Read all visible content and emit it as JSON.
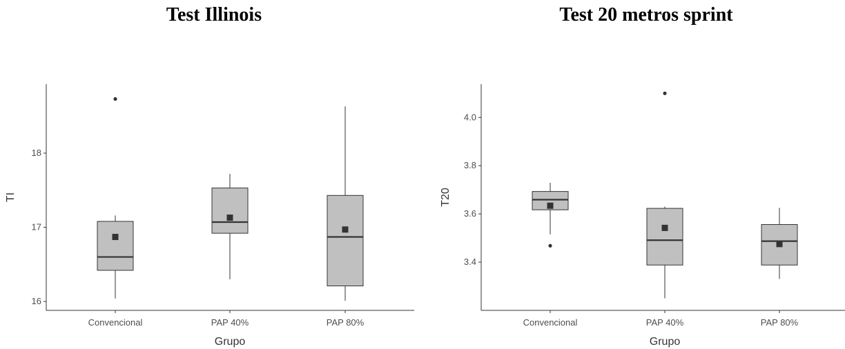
{
  "chart_data": [
    {
      "type": "box",
      "title": "Test Illinois",
      "xlabel": "Grupo",
      "ylabel": "TI",
      "categories": [
        "Convencional",
        "PAP 40%",
        "PAP 80%"
      ],
      "yticks": [
        16,
        17,
        18
      ],
      "ylim": [
        15.88,
        18.93
      ],
      "boxes": [
        {
          "category": "Convencional",
          "whisker_low": 16.04,
          "q1": 16.42,
          "median": 16.6,
          "q3": 17.08,
          "whisker_high": 17.16,
          "mean": 16.87,
          "outliers": [
            18.73
          ]
        },
        {
          "category": "PAP 40%",
          "whisker_low": 16.3,
          "q1": 16.92,
          "median": 17.07,
          "q3": 17.53,
          "whisker_high": 17.72,
          "mean": 17.13,
          "outliers": []
        },
        {
          "category": "PAP 80%",
          "whisker_low": 16.01,
          "q1": 16.21,
          "median": 16.87,
          "q3": 17.43,
          "whisker_high": 18.63,
          "mean": 16.97,
          "outliers": []
        }
      ]
    },
    {
      "type": "box",
      "title": "Test 20 metros sprint",
      "xlabel": "Grupo",
      "ylabel": "T20",
      "categories": [
        "Convencional",
        "PAP 40%",
        "PAP 80%"
      ],
      "yticks": [
        3.4,
        3.6,
        3.8,
        4.0
      ],
      "ytick_labels": [
        "3.4",
        "3.6",
        "3.8",
        "4.0"
      ],
      "ylim": [
        3.2,
        4.138
      ],
      "boxes": [
        {
          "category": "Convencional",
          "whisker_low": 3.515,
          "q1": 3.617,
          "median": 3.659,
          "q3": 3.693,
          "whisker_high": 3.729,
          "mean": 3.634,
          "outliers": [
            3.468
          ]
        },
        {
          "category": "PAP 40%",
          "whisker_low": 3.25,
          "q1": 3.388,
          "median": 3.491,
          "q3": 3.623,
          "whisker_high": 3.63,
          "mean": 3.542,
          "outliers": [
            4.1
          ]
        },
        {
          "category": "PAP 80%",
          "whisker_low": 3.33,
          "q1": 3.388,
          "median": 3.487,
          "q3": 3.556,
          "whisker_high": 3.625,
          "mean": 3.475,
          "outliers": []
        }
      ]
    }
  ],
  "colors": {
    "box_fill": "#c0c0c0",
    "box_stroke": "#333333",
    "median": "#333333",
    "mean_marker": "#333333",
    "axis": "#333333"
  }
}
